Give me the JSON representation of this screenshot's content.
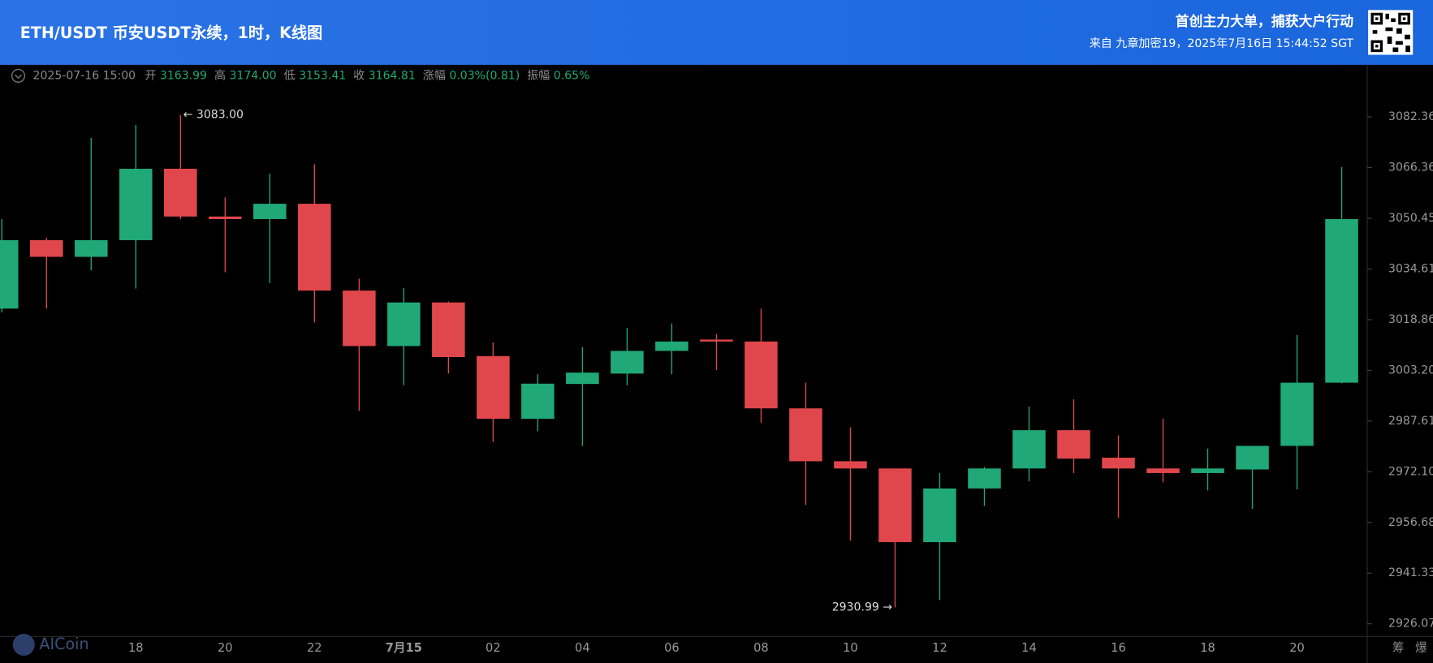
{
  "header": {
    "title": "ETH/USDT 币安USDT永续，1时，K线图",
    "slogan": "首创主力大单，捕获大户行动",
    "source": "来自 九章加密19，2025年7月16日 15:44:52 SGT"
  },
  "info": {
    "date": "2025-07-16 15:00",
    "items": [
      {
        "label": "开",
        "value": "3163.99"
      },
      {
        "label": "高",
        "value": "3174.00"
      },
      {
        "label": "低",
        "value": "3153.41"
      },
      {
        "label": "收",
        "value": "3164.81"
      },
      {
        "label": "涨幅",
        "value": "0.03%(0.81)"
      },
      {
        "label": "振幅",
        "value": "0.65%"
      }
    ]
  },
  "watermark": "AICoin",
  "side_buttons": [
    "筹",
    "爆"
  ],
  "chart_data": {
    "type": "candlestick",
    "log": true,
    "grid": false,
    "up_color": "#20a878",
    "down_color": "#e0474c",
    "categories": [
      null,
      null,
      null,
      "18",
      null,
      "20",
      null,
      "22",
      null,
      "7月15",
      null,
      "02",
      null,
      "04",
      null,
      "06",
      null,
      "08",
      null,
      "10",
      null,
      "12",
      null,
      "14",
      null,
      "16",
      null,
      "18",
      null,
      "20",
      null
    ],
    "open": [
      3022.3,
      3043.6,
      3038.4,
      3043.6,
      3066.0,
      3051.0,
      3050.2,
      3055.0,
      3027.9,
      3010.7,
      3024.2,
      3007.6,
      2988.3,
      2999.0,
      3002.2,
      3009.2,
      3012.7,
      3012.1,
      2991.5,
      2975.3,
      2973.1,
      2950.7,
      2967.0,
      2973.1,
      2984.8,
      2976.4,
      2973.1,
      2971.7,
      2972.8,
      2980.0,
      2999.4
    ],
    "high": [
      3050.2,
      3044.4,
      3075.7,
      3079.8,
      3083.0,
      3057.0,
      3064.5,
      3067.4,
      3031.6,
      3028.7,
      3024.5,
      3011.8,
      3002.0,
      3010.4,
      3016.3,
      3017.7,
      3014.4,
      3022.3,
      2999.4,
      2985.7,
      2973.1,
      2971.7,
      2973.6,
      2992.1,
      2994.3,
      2983.2,
      2988.4,
      2979.2,
      2980.0,
      3014.1,
      3066.5
    ],
    "low": [
      3021.1,
      3022.3,
      3034.2,
      3028.5,
      3050.2,
      3033.6,
      3030.2,
      3018.0,
      2990.7,
      2998.6,
      3002.2,
      2981.2,
      2984.5,
      2980.0,
      2998.6,
      3002.0,
      3003.3,
      2987.1,
      2962.0,
      2951.2,
      2930.99,
      2933.2,
      2961.7,
      2969.2,
      2971.7,
      2958.1,
      2968.9,
      2966.4,
      2960.8,
      2966.7,
      2999.2
    ],
    "close": [
      3043.6,
      3038.4,
      3043.6,
      3066.0,
      3051.0,
      3050.2,
      3055.0,
      3027.9,
      3010.7,
      3024.2,
      3007.3,
      2988.3,
      2999.1,
      3002.5,
      3009.2,
      3012.1,
      3012.1,
      2991.5,
      2975.3,
      2973.1,
      2950.7,
      2967.0,
      2973.1,
      2984.8,
      2976.1,
      2973.1,
      2971.7,
      2973.1,
      2980.0,
      2999.4,
      3050.2
    ],
    "annotations": [
      "← 3083.00",
      "2930.99 →"
    ],
    "ylim": [
      2922.25,
      3098.59
    ],
    "yticks": [
      3082.36,
      3066.36,
      3050.45,
      3034.61,
      3018.86,
      {
        "value": 3003.2,
        "label": "3003.20"
      },
      2987.61,
      {
        "value": 2972.1,
        "label": "2972.10"
      },
      2956.68,
      2941.33,
      2926.07
    ]
  }
}
